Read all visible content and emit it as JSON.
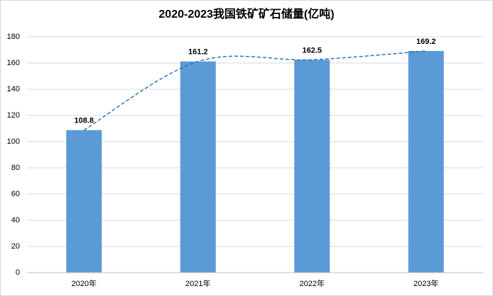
{
  "chart_data": {
    "type": "bar",
    "title": "2020-2023我国铁矿矿石储量(亿吨)",
    "categories": [
      "2020年",
      "2021年",
      "2022年",
      "2023年"
    ],
    "values": [
      108.8,
      161.2,
      162.5,
      169.2
    ],
    "color": "#5b9bd5",
    "trendline": true,
    "trendline_color": "#2e75b6",
    "ylim": [
      0,
      180
    ],
    "yticks": [
      0,
      20,
      40,
      60,
      80,
      100,
      120,
      140,
      160,
      180
    ],
    "grid": true
  }
}
